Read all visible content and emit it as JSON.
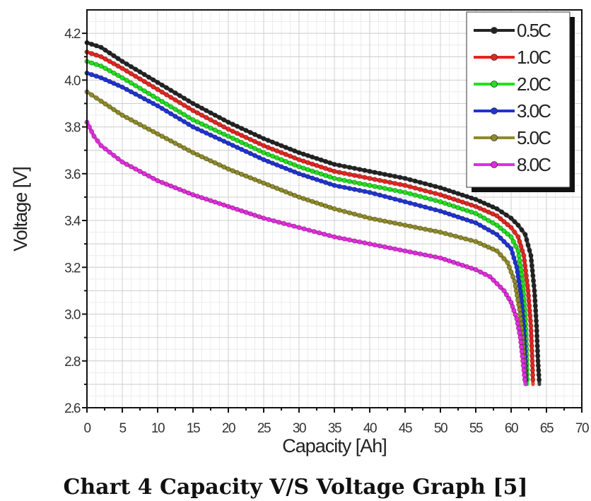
{
  "caption": "Chart 4 Capacity V/S Voltage Graph [5]",
  "chart_data": {
    "type": "line",
    "title": "",
    "xlabel": "Capacity [Ah]",
    "ylabel": "Voltage [V]",
    "xlim": [
      0,
      70
    ],
    "ylim": [
      2.6,
      4.3
    ],
    "x_ticks": [
      0,
      5,
      10,
      15,
      20,
      25,
      30,
      35,
      40,
      45,
      50,
      55,
      60,
      65,
      70
    ],
    "y_ticks": [
      2.6,
      2.8,
      3.0,
      3.2,
      3.4,
      3.6,
      3.8,
      4.0,
      4.2
    ],
    "x_tick_labels": [
      "0",
      "5",
      "10",
      "15",
      "20",
      "25",
      "30",
      "35",
      "40",
      "45",
      "50",
      "55",
      "60",
      "65",
      "70"
    ],
    "y_tick_labels": [
      "2.6",
      "2.8",
      "3.0",
      "3.2",
      "3.4",
      "3.6",
      "3.8",
      "4.0",
      "4.2"
    ],
    "grid": true,
    "legend_position": "upper right",
    "series": [
      {
        "name": "0.5C",
        "color": "#222222",
        "x": [
          0,
          2,
          5,
          10,
          15,
          20,
          25,
          30,
          35,
          40,
          45,
          50,
          55,
          58,
          60,
          61,
          62,
          62.8,
          63.3,
          63.6,
          63.8,
          64
        ],
        "y": [
          4.16,
          4.14,
          4.08,
          3.99,
          3.9,
          3.82,
          3.75,
          3.69,
          3.64,
          3.61,
          3.58,
          3.54,
          3.49,
          3.45,
          3.41,
          3.38,
          3.34,
          3.25,
          3.1,
          2.95,
          2.8,
          2.7
        ]
      },
      {
        "name": "1.0C",
        "color": "#e8251f",
        "x": [
          0,
          2,
          5,
          10,
          15,
          20,
          25,
          30,
          35,
          40,
          45,
          50,
          55,
          58,
          60,
          61,
          61.8,
          62.4,
          62.8,
          63,
          63.1
        ],
        "y": [
          4.12,
          4.1,
          4.05,
          3.96,
          3.87,
          3.79,
          3.72,
          3.66,
          3.61,
          3.58,
          3.55,
          3.51,
          3.46,
          3.42,
          3.37,
          3.33,
          3.25,
          3.1,
          2.95,
          2.8,
          2.7
        ]
      },
      {
        "name": "2.0C",
        "color": "#22e01e",
        "x": [
          0,
          2,
          5,
          10,
          15,
          20,
          25,
          30,
          35,
          40,
          45,
          50,
          55,
          58,
          60,
          61,
          61.6,
          62,
          62.2,
          62.3
        ],
        "y": [
          4.08,
          4.06,
          4.01,
          3.92,
          3.83,
          3.76,
          3.69,
          3.63,
          3.58,
          3.55,
          3.52,
          3.48,
          3.43,
          3.38,
          3.33,
          3.27,
          3.15,
          3.0,
          2.85,
          2.7
        ]
      },
      {
        "name": "3.0C",
        "color": "#1f33d6",
        "x": [
          0,
          2,
          5,
          10,
          15,
          20,
          25,
          30,
          35,
          40,
          45,
          50,
          55,
          58,
          60,
          60.8,
          61.4,
          61.8,
          62,
          62.1
        ],
        "y": [
          4.03,
          4.01,
          3.97,
          3.89,
          3.8,
          3.73,
          3.66,
          3.6,
          3.55,
          3.52,
          3.48,
          3.44,
          3.39,
          3.34,
          3.28,
          3.2,
          3.08,
          2.95,
          2.82,
          2.7
        ]
      },
      {
        "name": "5.0C",
        "color": "#8f8b27",
        "x": [
          0,
          2,
          5,
          10,
          15,
          20,
          25,
          30,
          35,
          40,
          45,
          50,
          55,
          58,
          59.5,
          60.5,
          61.2,
          61.6,
          61.9,
          62
        ],
        "y": [
          3.95,
          3.91,
          3.85,
          3.77,
          3.69,
          3.62,
          3.56,
          3.5,
          3.45,
          3.41,
          3.38,
          3.35,
          3.31,
          3.27,
          3.22,
          3.14,
          3.02,
          2.9,
          2.78,
          2.7
        ]
      },
      {
        "name": "8.0C",
        "color": "#e52be0",
        "x": [
          0,
          1,
          2,
          5,
          10,
          15,
          20,
          25,
          30,
          35,
          40,
          45,
          50,
          55,
          57,
          59,
          60,
          60.8,
          61.3,
          61.6,
          61.8,
          62
        ],
        "y": [
          3.82,
          3.76,
          3.72,
          3.65,
          3.57,
          3.51,
          3.46,
          3.41,
          3.37,
          3.33,
          3.3,
          3.27,
          3.24,
          3.19,
          3.16,
          3.1,
          3.05,
          2.98,
          2.9,
          2.82,
          2.76,
          2.7
        ]
      }
    ]
  }
}
